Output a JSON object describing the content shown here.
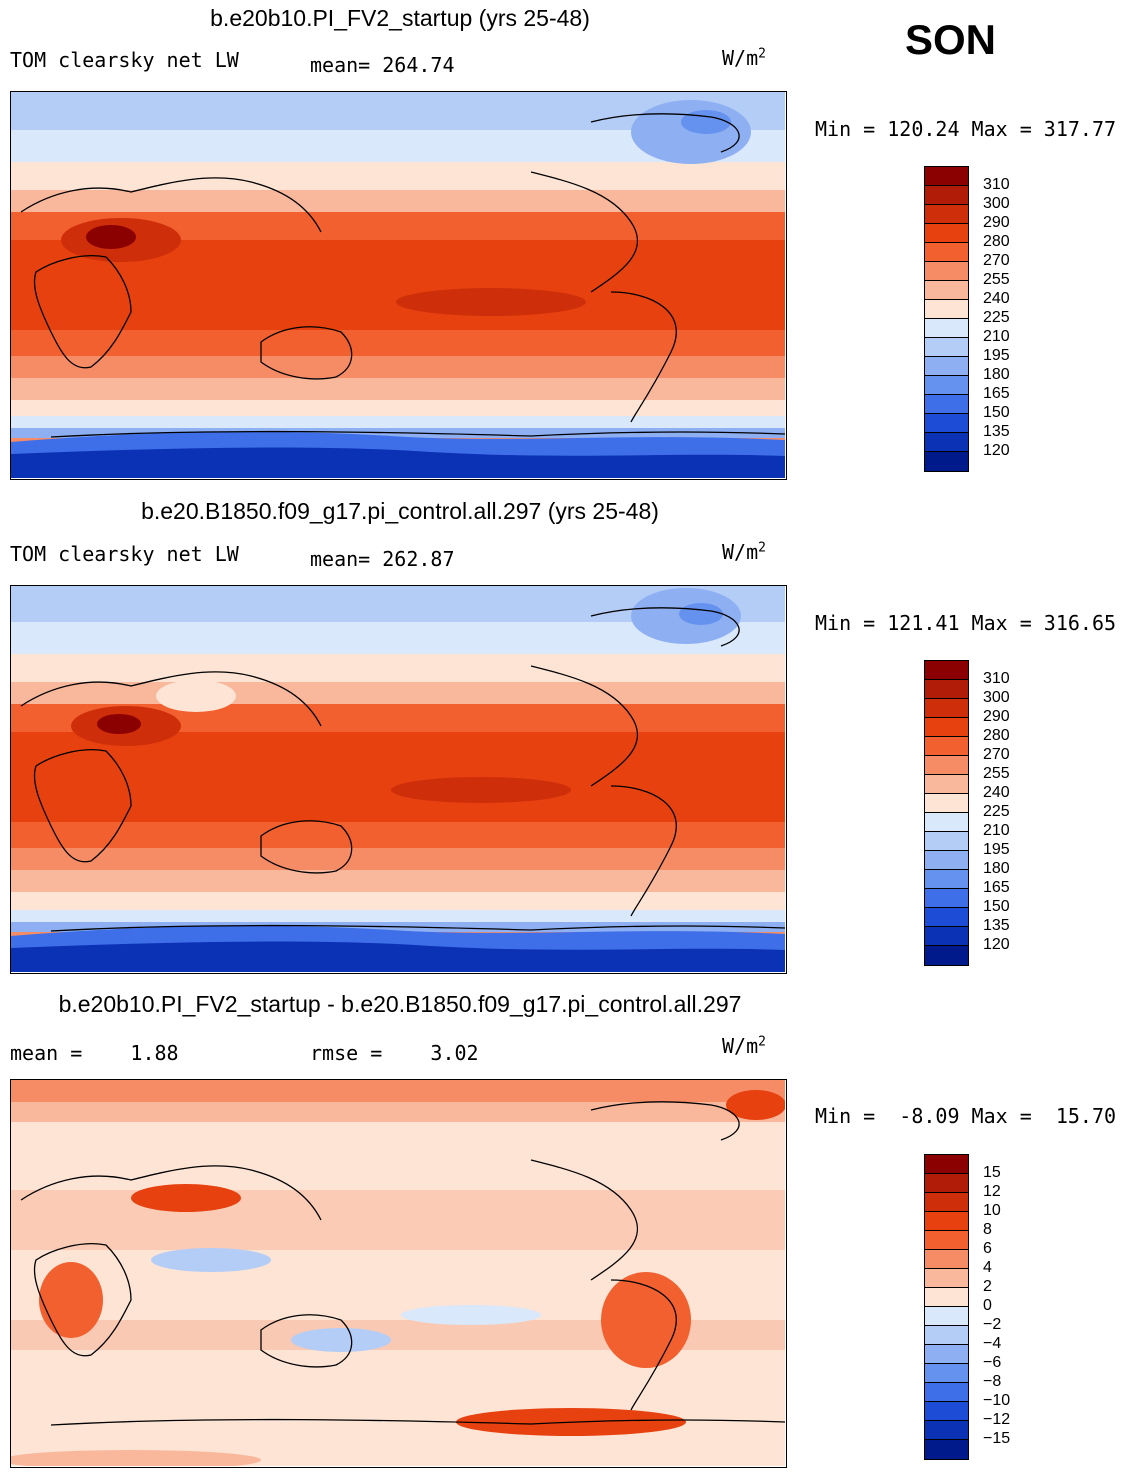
{
  "season": "SON",
  "units_label": "W/m",
  "units_sup": "2",
  "panels": [
    {
      "title": "b.e20b10.PI_FV2_startup (yrs 25-48)",
      "variable": "TOM clearsky net LW",
      "stat1": "mean= 264.74",
      "stat2": "",
      "minmax": "Min = 120.24 Max = 317.77",
      "levels": [
        "310",
        "300",
        "290",
        "280",
        "270",
        "255",
        "240",
        "225",
        "210",
        "195",
        "180",
        "165",
        "150",
        "135",
        "120"
      ],
      "colors": [
        "#8b0000",
        "#b01c08",
        "#cf2e0a",
        "#e6410f",
        "#f1602e",
        "#f68c66",
        "#f9b79c",
        "#fde4d4",
        "#d9e8fb",
        "#b4cdf7",
        "#8eb0f3",
        "#6692ef",
        "#3f6fe8",
        "#1d4dd7",
        "#0b31b5",
        "#001a8c"
      ],
      "mean": 264.74,
      "min": 120.24,
      "max": 317.77
    },
    {
      "title": "b.e20.B1850.f09_g17.pi_control.all.297 (yrs 25-48)",
      "variable": "TOM clearsky net LW",
      "stat1": "mean= 262.87",
      "stat2": "",
      "minmax": "Min = 121.41 Max = 316.65",
      "levels": [
        "310",
        "300",
        "290",
        "280",
        "270",
        "255",
        "240",
        "225",
        "210",
        "195",
        "180",
        "165",
        "150",
        "135",
        "120"
      ],
      "colors": [
        "#8b0000",
        "#b01c08",
        "#cf2e0a",
        "#e6410f",
        "#f1602e",
        "#f68c66",
        "#f9b79c",
        "#fde4d4",
        "#d9e8fb",
        "#b4cdf7",
        "#8eb0f3",
        "#6692ef",
        "#3f6fe8",
        "#1d4dd7",
        "#0b31b5",
        "#001a8c"
      ],
      "mean": 262.87,
      "min": 121.41,
      "max": 316.65
    },
    {
      "title": "b.e20b10.PI_FV2_startup - b.e20.B1850.f09_g17.pi_control.all.297",
      "variable": "",
      "stat1": "mean =    1.88",
      "stat2": "rmse =    3.02",
      "minmax": "Min =  -8.09 Max =  15.70",
      "levels": [
        "15",
        "12",
        "10",
        "8",
        "6",
        "4",
        "2",
        "0",
        "−2",
        "−4",
        "−6",
        "−8",
        "−10",
        "−12",
        "−15"
      ],
      "colors": [
        "#8b0000",
        "#b01c08",
        "#cf2e0a",
        "#e6410f",
        "#f1602e",
        "#f68c66",
        "#f9b79c",
        "#fde4d4",
        "#d9e8fb",
        "#b4cdf7",
        "#8eb0f3",
        "#6692ef",
        "#3f6fe8",
        "#1d4dd7",
        "#0b31b5",
        "#001a8c"
      ],
      "mean": 1.88,
      "rmse": 3.02,
      "min": -8.09,
      "max": 15.7
    }
  ]
}
